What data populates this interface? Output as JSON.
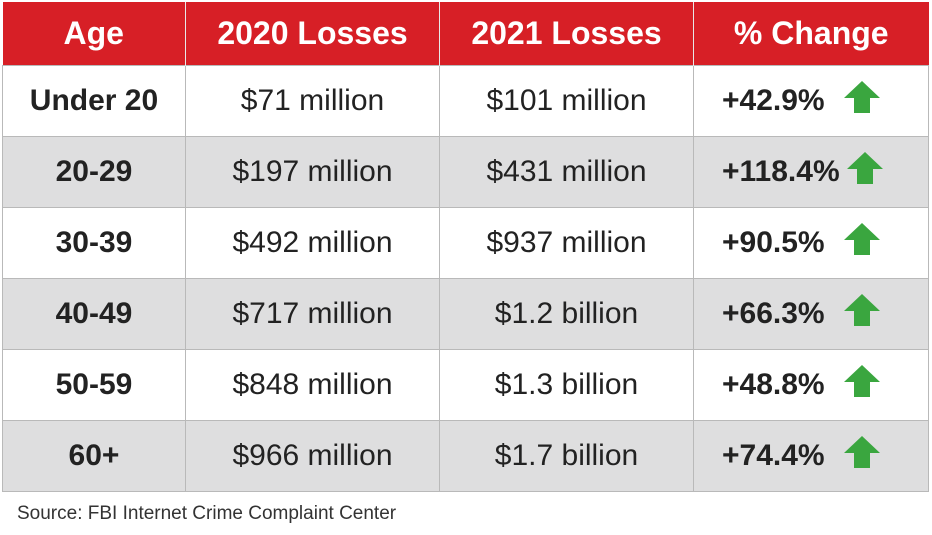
{
  "chart_data": {
    "type": "table",
    "columns": [
      "Age",
      "2020 Losses",
      "2021 Losses",
      "% Change"
    ],
    "rows": [
      {
        "age": "Under 20",
        "losses_2020": "$71 million",
        "losses_2021": "$101 million",
        "change": "+42.9%"
      },
      {
        "age": "20-29",
        "losses_2020": "$197 million",
        "losses_2021": "$431 million",
        "change": "+118.4%"
      },
      {
        "age": "30-39",
        "losses_2020": "$492 million",
        "losses_2021": "$937 million",
        "change": "+90.5%"
      },
      {
        "age": "40-49",
        "losses_2020": "$717 million",
        "losses_2021": "$1.2 billion",
        "change": "+66.3%"
      },
      {
        "age": "50-59",
        "losses_2020": "$848 million",
        "losses_2021": "$1.3 billion",
        "change": "+48.8%"
      },
      {
        "age": "60+",
        "losses_2020": "$966 million",
        "losses_2021": "$1.7 billion",
        "change": "+74.4%"
      }
    ],
    "change_icon": "up-arrow-icon",
    "source": "Source: FBI Internet Crime Complaint Center"
  },
  "colors": {
    "header_bg": "#d71f26",
    "header_text": "#ffffff",
    "alt_row_bg": "#dededf",
    "arrow": "#3aa63f"
  }
}
